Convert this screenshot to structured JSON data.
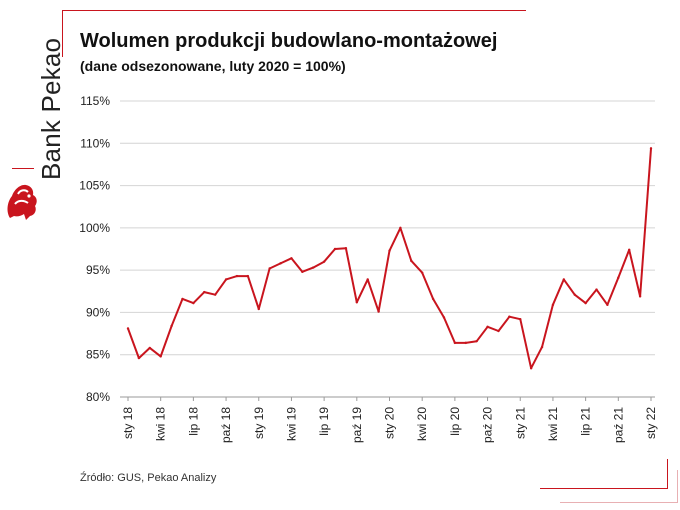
{
  "brand": {
    "name": "Bank Pekao",
    "accent": "#c9151e"
  },
  "title": "Wolumen produkcji budowlano-montażowej",
  "subtitle": "(dane odsezonowane, luty 2020 = 100%)",
  "source": "Źródło: GUS, Pekao Analizy",
  "chart_data": {
    "type": "line",
    "title": "Wolumen produkcji budowlano-montażowej",
    "subtitle": "(dane odsezonowane, luty 2020 = 100%)",
    "xlabel": "",
    "ylabel": "",
    "ylim": [
      80,
      115
    ],
    "yticks": [
      "80%",
      "85%",
      "90%",
      "95%",
      "100%",
      "105%",
      "110%",
      "115%"
    ],
    "ytick_values": [
      80,
      85,
      90,
      95,
      100,
      105,
      110,
      115
    ],
    "grid": "horizontal",
    "line_color": "#c9151e",
    "x_tick_labels": [
      "sty 18",
      "kwi 18",
      "lip 18",
      "paź 18",
      "sty 19",
      "kwi 19",
      "lip 19",
      "paź 19",
      "sty 20",
      "kwi 20",
      "lip 20",
      "paź 20",
      "sty 21",
      "kwi 21",
      "lip 21",
      "paź 21",
      "sty 22"
    ],
    "x_tick_month_index": [
      0,
      3,
      6,
      9,
      12,
      15,
      18,
      21,
      24,
      27,
      30,
      33,
      36,
      39,
      42,
      45,
      48
    ],
    "x": [
      "2018-01",
      "2018-02",
      "2018-03",
      "2018-04",
      "2018-05",
      "2018-06",
      "2018-07",
      "2018-08",
      "2018-09",
      "2018-10",
      "2018-11",
      "2018-12",
      "2019-01",
      "2019-02",
      "2019-03",
      "2019-04",
      "2019-05",
      "2019-06",
      "2019-07",
      "2019-08",
      "2019-09",
      "2019-10",
      "2019-11",
      "2019-12",
      "2020-01",
      "2020-02",
      "2020-03",
      "2020-04",
      "2020-05",
      "2020-06",
      "2020-07",
      "2020-08",
      "2020-09",
      "2020-10",
      "2020-11",
      "2020-12",
      "2021-01",
      "2021-02",
      "2021-03",
      "2021-04",
      "2021-05",
      "2021-06",
      "2021-07",
      "2021-08",
      "2021-09",
      "2021-10",
      "2021-11",
      "2021-12",
      "2022-01"
    ],
    "series": [
      {
        "values": [
          88.1,
          84.6,
          85.8,
          84.8,
          88.4,
          91.6,
          91.1,
          92.4,
          92.1,
          93.9,
          94.3,
          94.3,
          90.4,
          95.2,
          95.8,
          96.4,
          94.8,
          95.3,
          96.0,
          97.5,
          97.6,
          91.2,
          93.9,
          90.1,
          97.3,
          100.0,
          96.1,
          94.7,
          91.6,
          89.4,
          86.4,
          86.4,
          86.6,
          88.3,
          87.8,
          89.5,
          89.2,
          83.4,
          85.9,
          90.9,
          93.9,
          92.1,
          91.1,
          92.7,
          90.9,
          94.1,
          97.4,
          91.9,
          109.4
        ]
      }
    ]
  }
}
